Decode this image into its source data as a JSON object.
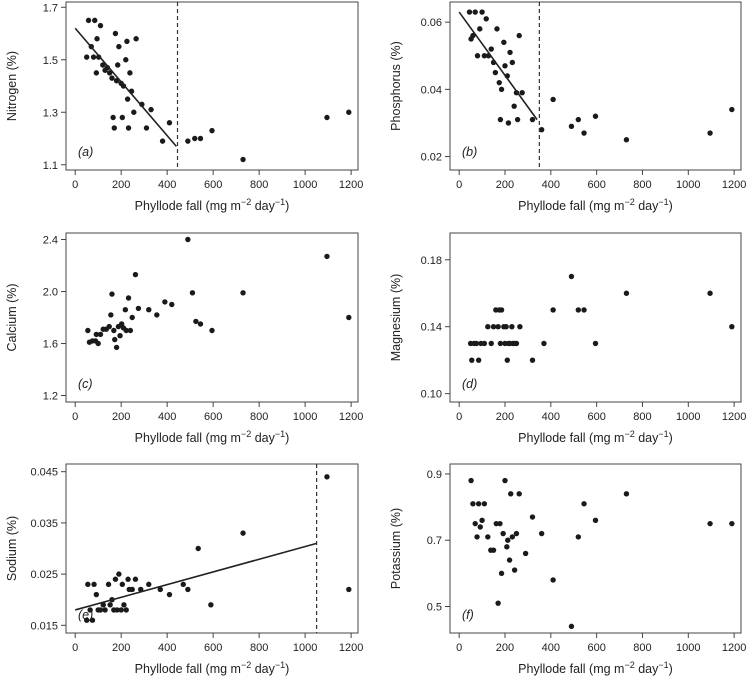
{
  "chart_data": [
    {
      "type": "scatter",
      "panel_label": "(a)",
      "xlabel": "Phyllode fall (mg m−2 day−1)",
      "ylabel": "Nitrogen (%)",
      "xlim": [
        -40,
        1230
      ],
      "ylim": [
        1.08,
        1.72
      ],
      "xticks": [
        0,
        200,
        400,
        600,
        800,
        1000,
        1200
      ],
      "yticks": [
        1.1,
        1.3,
        1.5,
        1.7
      ],
      "ytick_labels": [
        "1.1",
        "1.3",
        "1.5",
        "1.7"
      ],
      "points": [
        [
          50,
          1.51
        ],
        [
          58,
          1.65
        ],
        [
          70,
          1.55
        ],
        [
          80,
          1.51
        ],
        [
          85,
          1.65
        ],
        [
          92,
          1.45
        ],
        [
          95,
          1.58
        ],
        [
          102,
          1.51
        ],
        [
          110,
          1.63
        ],
        [
          120,
          1.48
        ],
        [
          130,
          1.46
        ],
        [
          140,
          1.47
        ],
        [
          150,
          1.45
        ],
        [
          160,
          1.43
        ],
        [
          165,
          1.28
        ],
        [
          170,
          1.24
        ],
        [
          175,
          1.6
        ],
        [
          180,
          1.42
        ],
        [
          185,
          1.48
        ],
        [
          190,
          1.55
        ],
        [
          200,
          1.41
        ],
        [
          205,
          1.28
        ],
        [
          210,
          1.4
        ],
        [
          220,
          1.5
        ],
        [
          225,
          1.57
        ],
        [
          228,
          1.35
        ],
        [
          232,
          1.24
        ],
        [
          238,
          1.45
        ],
        [
          245,
          1.38
        ],
        [
          255,
          1.3
        ],
        [
          265,
          1.58
        ],
        [
          290,
          1.33
        ],
        [
          310,
          1.24
        ],
        [
          330,
          1.31
        ],
        [
          380,
          1.19
        ],
        [
          410,
          1.26
        ],
        [
          490,
          1.19
        ],
        [
          520,
          1.2
        ],
        [
          545,
          1.2
        ],
        [
          595,
          1.23
        ],
        [
          730,
          1.12
        ],
        [
          1095,
          1.28
        ],
        [
          1190,
          1.3
        ]
      ],
      "trendline": [
        [
          0,
          1.62
        ],
        [
          440,
          1.17
        ]
      ],
      "threshold_x": 445
    },
    {
      "type": "scatter",
      "panel_label": "(b)",
      "xlabel": "Phyllode fall (mg m−2 day−1)",
      "ylabel": "Phosphorus (%)",
      "xlim": [
        -40,
        1230
      ],
      "ylim": [
        0.016,
        0.066
      ],
      "xticks": [
        0,
        200,
        400,
        600,
        800,
        1000,
        1200
      ],
      "yticks": [
        0.02,
        0.04,
        0.06
      ],
      "ytick_labels": [
        "0.02",
        "0.04",
        "0.06"
      ],
      "points": [
        [
          45,
          0.063
        ],
        [
          52,
          0.055
        ],
        [
          60,
          0.056
        ],
        [
          70,
          0.063
        ],
        [
          80,
          0.05
        ],
        [
          90,
          0.058
        ],
        [
          100,
          0.063
        ],
        [
          110,
          0.05
        ],
        [
          118,
          0.061
        ],
        [
          128,
          0.05
        ],
        [
          140,
          0.052
        ],
        [
          150,
          0.048
        ],
        [
          158,
          0.045
        ],
        [
          165,
          0.058
        ],
        [
          175,
          0.042
        ],
        [
          180,
          0.031
        ],
        [
          185,
          0.04
        ],
        [
          195,
          0.054
        ],
        [
          200,
          0.047
        ],
        [
          210,
          0.044
        ],
        [
          215,
          0.03
        ],
        [
          222,
          0.051
        ],
        [
          232,
          0.048
        ],
        [
          240,
          0.035
        ],
        [
          250,
          0.039
        ],
        [
          255,
          0.031
        ],
        [
          262,
          0.056
        ],
        [
          275,
          0.039
        ],
        [
          320,
          0.031
        ],
        [
          360,
          0.028
        ],
        [
          410,
          0.037
        ],
        [
          490,
          0.029
        ],
        [
          520,
          0.031
        ],
        [
          545,
          0.027
        ],
        [
          595,
          0.032
        ],
        [
          730,
          0.025
        ],
        [
          1095,
          0.027
        ],
        [
          1190,
          0.034
        ]
      ],
      "trendline": [
        [
          0,
          0.063
        ],
        [
          340,
          0.031
        ]
      ],
      "threshold_x": 350
    },
    {
      "type": "scatter",
      "panel_label": "(c)",
      "xlabel": "Phyllode fall (mg m−2 day−1)",
      "ylabel": "Calcium (%)",
      "xlim": [
        -40,
        1230
      ],
      "ylim": [
        1.15,
        2.45
      ],
      "xticks": [
        0,
        200,
        400,
        600,
        800,
        1000,
        1200
      ],
      "yticks": [
        1.2,
        1.6,
        2.0,
        2.4
      ],
      "ytick_labels": [
        "1.2",
        "1.6",
        "2.0",
        "2.4"
      ],
      "points": [
        [
          55,
          1.7
        ],
        [
          62,
          1.61
        ],
        [
          75,
          1.62
        ],
        [
          88,
          1.62
        ],
        [
          92,
          1.67
        ],
        [
          100,
          1.6
        ],
        [
          110,
          1.67
        ],
        [
          122,
          1.71
        ],
        [
          135,
          1.71
        ],
        [
          148,
          1.73
        ],
        [
          155,
          1.82
        ],
        [
          160,
          1.98
        ],
        [
          168,
          1.7
        ],
        [
          172,
          1.63
        ],
        [
          180,
          1.57
        ],
        [
          188,
          1.73
        ],
        [
          195,
          1.66
        ],
        [
          202,
          1.75
        ],
        [
          210,
          1.72
        ],
        [
          218,
          1.86
        ],
        [
          222,
          1.7
        ],
        [
          232,
          1.95
        ],
        [
          240,
          1.7
        ],
        [
          248,
          1.8
        ],
        [
          262,
          2.13
        ],
        [
          275,
          1.87
        ],
        [
          320,
          1.86
        ],
        [
          355,
          1.82
        ],
        [
          390,
          1.92
        ],
        [
          420,
          1.9
        ],
        [
          490,
          2.4
        ],
        [
          510,
          1.99
        ],
        [
          525,
          1.77
        ],
        [
          545,
          1.75
        ],
        [
          595,
          1.7
        ],
        [
          730,
          1.99
        ],
        [
          1095,
          2.27
        ],
        [
          1190,
          1.8
        ]
      ]
    },
    {
      "type": "scatter",
      "panel_label": "(d)",
      "xlabel": "Phyllode fall (mg m−2 day−1)",
      "ylabel": "Magnesium (%)",
      "xlim": [
        -40,
        1230
      ],
      "ylim": [
        0.095,
        0.196
      ],
      "xticks": [
        0,
        200,
        400,
        600,
        800,
        1000,
        1200
      ],
      "yticks": [
        0.1,
        0.14,
        0.18
      ],
      "ytick_labels": [
        "0.10",
        "0.14",
        "0.18"
      ],
      "points": [
        [
          50,
          0.13
        ],
        [
          55,
          0.12
        ],
        [
          65,
          0.13
        ],
        [
          75,
          0.13
        ],
        [
          85,
          0.12
        ],
        [
          95,
          0.13
        ],
        [
          110,
          0.13
        ],
        [
          125,
          0.14
        ],
        [
          140,
          0.13
        ],
        [
          150,
          0.14
        ],
        [
          160,
          0.15
        ],
        [
          170,
          0.14
        ],
        [
          175,
          0.15
        ],
        [
          180,
          0.13
        ],
        [
          185,
          0.15
        ],
        [
          195,
          0.14
        ],
        [
          200,
          0.13
        ],
        [
          205,
          0.14
        ],
        [
          210,
          0.12
        ],
        [
          215,
          0.13
        ],
        [
          222,
          0.13
        ],
        [
          230,
          0.14
        ],
        [
          235,
          0.13
        ],
        [
          242,
          0.13
        ],
        [
          250,
          0.13
        ],
        [
          265,
          0.14
        ],
        [
          320,
          0.12
        ],
        [
          370,
          0.13
        ],
        [
          410,
          0.15
        ],
        [
          490,
          0.17
        ],
        [
          520,
          0.15
        ],
        [
          545,
          0.15
        ],
        [
          595,
          0.13
        ],
        [
          730,
          0.16
        ],
        [
          1095,
          0.16
        ],
        [
          1190,
          0.14
        ]
      ]
    },
    {
      "type": "scatter",
      "panel_label": "(e)",
      "xlabel": "Phyllode fall (mg m−2 day−1)",
      "ylabel": "Sodium (%)",
      "xlim": [
        -40,
        1230
      ],
      "ylim": [
        0.0135,
        0.0465
      ],
      "xticks": [
        0,
        200,
        400,
        600,
        800,
        1000,
        1200
      ],
      "yticks": [
        0.015,
        0.025,
        0.035,
        0.045
      ],
      "ytick_labels": [
        "0.015",
        "0.025",
        "0.035",
        "0.045"
      ],
      "points": [
        [
          50,
          0.016
        ],
        [
          55,
          0.023
        ],
        [
          65,
          0.018
        ],
        [
          75,
          0.016
        ],
        [
          82,
          0.023
        ],
        [
          92,
          0.021
        ],
        [
          100,
          0.018
        ],
        [
          110,
          0.018
        ],
        [
          122,
          0.019
        ],
        [
          130,
          0.018
        ],
        [
          145,
          0.023
        ],
        [
          152,
          0.019
        ],
        [
          160,
          0.02
        ],
        [
          168,
          0.018
        ],
        [
          175,
          0.024
        ],
        [
          182,
          0.018
        ],
        [
          190,
          0.025
        ],
        [
          200,
          0.018
        ],
        [
          205,
          0.023
        ],
        [
          212,
          0.019
        ],
        [
          222,
          0.018
        ],
        [
          230,
          0.024
        ],
        [
          235,
          0.022
        ],
        [
          248,
          0.022
        ],
        [
          262,
          0.024
        ],
        [
          285,
          0.022
        ],
        [
          320,
          0.023
        ],
        [
          370,
          0.022
        ],
        [
          410,
          0.021
        ],
        [
          470,
          0.023
        ],
        [
          490,
          0.022
        ],
        [
          535,
          0.03
        ],
        [
          590,
          0.019
        ],
        [
          730,
          0.033
        ],
        [
          1095,
          0.044
        ],
        [
          1190,
          0.022
        ]
      ],
      "trendline": [
        [
          0,
          0.018
        ],
        [
          1050,
          0.031
        ]
      ],
      "threshold_x": 1050
    },
    {
      "type": "scatter",
      "panel_label": "(f)",
      "xlabel": "Phyllode fall (mg m−2 day−1)",
      "ylabel": "Potassium (%)",
      "xlim": [
        -40,
        1230
      ],
      "ylim": [
        0.42,
        0.93
      ],
      "xticks": [
        0,
        200,
        400,
        600,
        800,
        1000,
        1200
      ],
      "yticks": [
        0.5,
        0.7,
        0.9
      ],
      "ytick_labels": [
        "0.5",
        "0.7",
        "0.9"
      ],
      "points": [
        [
          52,
          0.88
        ],
        [
          60,
          0.81
        ],
        [
          70,
          0.75
        ],
        [
          78,
          0.71
        ],
        [
          85,
          0.81
        ],
        [
          92,
          0.74
        ],
        [
          100,
          0.76
        ],
        [
          110,
          0.81
        ],
        [
          125,
          0.71
        ],
        [
          138,
          0.67
        ],
        [
          150,
          0.67
        ],
        [
          162,
          0.75
        ],
        [
          170,
          0.51
        ],
        [
          178,
          0.75
        ],
        [
          185,
          0.6
        ],
        [
          192,
          0.72
        ],
        [
          200,
          0.88
        ],
        [
          208,
          0.68
        ],
        [
          212,
          0.7
        ],
        [
          220,
          0.64
        ],
        [
          225,
          0.84
        ],
        [
          232,
          0.71
        ],
        [
          242,
          0.61
        ],
        [
          250,
          0.72
        ],
        [
          262,
          0.84
        ],
        [
          290,
          0.66
        ],
        [
          320,
          0.77
        ],
        [
          360,
          0.72
        ],
        [
          410,
          0.58
        ],
        [
          490,
          0.44
        ],
        [
          520,
          0.71
        ],
        [
          545,
          0.81
        ],
        [
          595,
          0.76
        ],
        [
          730,
          0.84
        ],
        [
          1095,
          0.75
        ],
        [
          1190,
          0.75
        ]
      ]
    }
  ]
}
